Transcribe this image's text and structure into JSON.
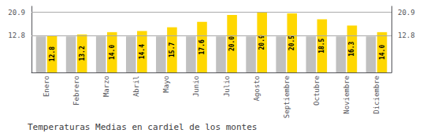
{
  "chart_data": {
    "type": "bar",
    "title": "Temperaturas Medias en cardiel de los montes",
    "categories": [
      "Enero",
      "Febrero",
      "Marzo",
      "Abril",
      "Mayo",
      "Junio",
      "Julio",
      "Agosto",
      "Septiembre",
      "Octubre",
      "Noviembre",
      "Diciembre"
    ],
    "series": [
      {
        "color": "#C0C0C0",
        "values": [
          12.5,
          12.5,
          12.5,
          12.5,
          12.5,
          12.5,
          12.5,
          12.5,
          12.5,
          12.5,
          12.5,
          12.5
        ]
      },
      {
        "color": "#FFD700",
        "values": [
          12.8,
          13.2,
          14.0,
          14.4,
          15.7,
          17.6,
          20.0,
          20.9,
          20.5,
          18.5,
          16.3,
          14.0
        ],
        "value_labels": [
          "12.8",
          "13.2",
          "14.0",
          "14.4",
          "15.7",
          "17.6",
          "20.0",
          "20.9",
          "20.5",
          "18.5",
          "16.3",
          "14.0"
        ],
        "data_labels": true
      }
    ],
    "ylim": [
      0,
      22.99
    ],
    "yticks": [
      12.8,
      20.9
    ],
    "y2lim": [
      0,
      22.99
    ],
    "y2ticks": [
      12.8,
      20.9
    ],
    "grid": true
  }
}
